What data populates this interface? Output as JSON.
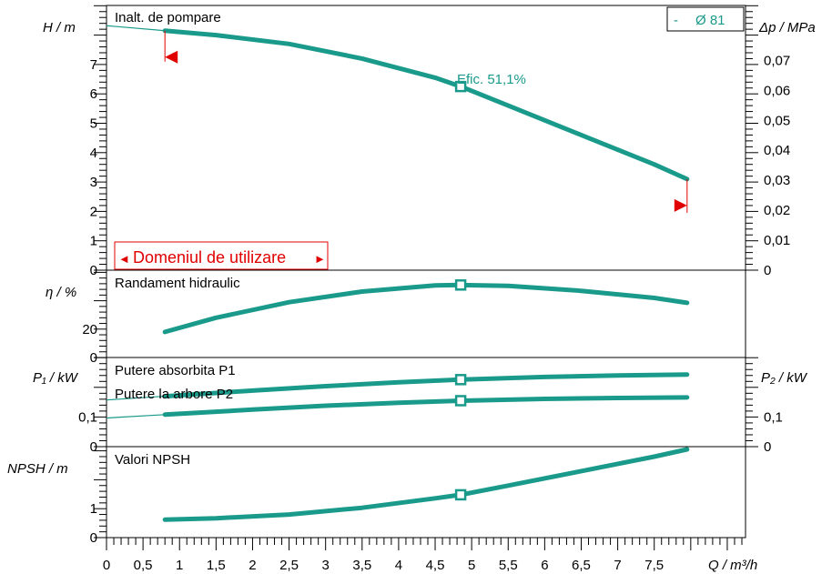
{
  "colors": {
    "curve": "#1a9a8a",
    "limit": "#e00000",
    "axis": "#000000"
  },
  "legend": {
    "dash": "-",
    "diameter": "Ø 81"
  },
  "labels": {
    "efficiency": "Efic.  51,1%",
    "usage_range": "Domeniul de utilizare",
    "usage_range_left": "◄",
    "usage_range_right": "►"
  },
  "chart_data": [
    {
      "type": "line",
      "panel": "head",
      "title": "Inalt. de pompare",
      "ylabel_left": "H  / m",
      "ylabel_right": "Δp / MPa",
      "ylim": [
        0,
        8
      ],
      "yticks": [
        "0",
        "1",
        "2",
        "3",
        "4",
        "5",
        "6",
        "7"
      ],
      "yticks_right": [
        "0",
        "0,01",
        "0,02",
        "0,03",
        "0,04",
        "0,05",
        "0,06",
        "0,07"
      ],
      "series": [
        {
          "x": [
            0.8,
            1.5,
            2.5,
            3.5,
            4.5,
            4.85,
            5.5,
            6.5,
            7.5,
            7.95
          ],
          "y": [
            8.15,
            8.0,
            7.7,
            7.2,
            6.55,
            6.25,
            5.6,
            4.6,
            3.6,
            3.1
          ]
        }
      ],
      "marker": {
        "x": 4.85,
        "y": 6.25
      },
      "usage_limits": {
        "min": 0.8,
        "max": 7.95
      }
    },
    {
      "type": "line",
      "panel": "efficiency",
      "title": "Randament hidraulic",
      "ylabel_left": "η  / %",
      "ylim": [
        0,
        60
      ],
      "yticks": [
        "0",
        "20"
      ],
      "series": [
        {
          "x": [
            0.8,
            1.5,
            2.5,
            3.5,
            4.5,
            4.85,
            5.5,
            6.5,
            7.5,
            7.95
          ],
          "y": [
            18,
            28,
            39,
            46.5,
            50.8,
            51.1,
            50.5,
            47,
            42,
            38.5
          ]
        }
      ],
      "marker": {
        "x": 4.85,
        "y": 51.1
      }
    },
    {
      "type": "line",
      "panel": "power",
      "title_p1": "Putere absorbita P1",
      "title_p2": "Putere la arbore P2",
      "ylabel_left": "P₁ / kW",
      "ylabel_right": "P₂ / kW",
      "ylim": [
        0,
        0.3
      ],
      "yticks": [
        "0",
        "0,1"
      ],
      "yticks_right": [
        "0",
        "0,1"
      ],
      "series": [
        {
          "name": "Putere absorbita P1",
          "x": [
            0.8,
            2,
            3,
            4,
            4.85,
            6,
            7,
            7.95
          ],
          "y": [
            0.17,
            0.189,
            0.204,
            0.217,
            0.226,
            0.235,
            0.24,
            0.243
          ]
        },
        {
          "name": "Putere la arbore P2",
          "x": [
            0.8,
            2,
            3,
            4,
            4.85,
            6,
            7,
            7.95
          ],
          "y": [
            0.108,
            0.125,
            0.138,
            0.148,
            0.155,
            0.161,
            0.164,
            0.166
          ]
        }
      ],
      "markers": [
        {
          "x": 4.85,
          "y": 0.226
        },
        {
          "x": 4.85,
          "y": 0.155
        }
      ]
    },
    {
      "type": "line",
      "panel": "npsh",
      "title": "Valori NPSH",
      "ylabel_left": "NPSH   / m",
      "ylim": [
        0,
        3
      ],
      "yticks": [
        "0",
        "1"
      ],
      "xlabel": "Q / m³/h",
      "xticks": [
        "0",
        "0,5",
        "1",
        "1,5",
        "2",
        "2,5",
        "3",
        "3,5",
        "4",
        "4,5",
        "5",
        "5,5",
        "6",
        "6,5",
        "7",
        "7,5"
      ],
      "xlim": [
        0,
        8.75
      ],
      "series": [
        {
          "x": [
            0.8,
            1.5,
            2.5,
            3.5,
            4.5,
            4.85,
            5.5,
            6.5,
            7.5,
            7.95
          ],
          "y": [
            0.62,
            0.67,
            0.8,
            1.03,
            1.36,
            1.48,
            1.8,
            2.3,
            2.8,
            3.05
          ]
        }
      ],
      "marker": {
        "x": 4.85,
        "y": 1.48
      }
    }
  ]
}
